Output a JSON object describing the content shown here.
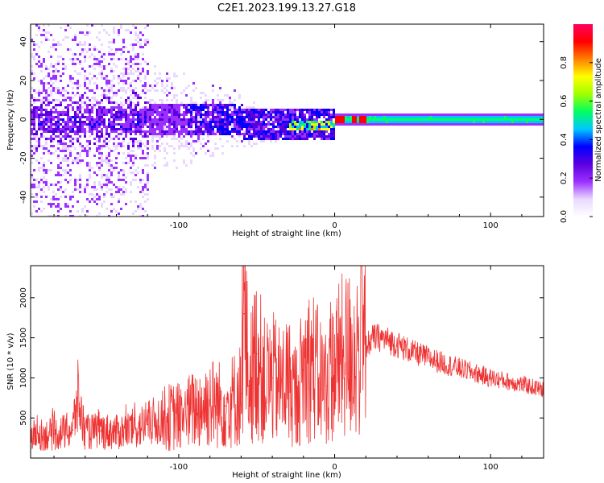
{
  "title": "C2E1.2023.199.13.27.G18",
  "chart_data": [
    {
      "type": "heatmap",
      "xlabel": "Height of straight line (km)",
      "ylabel": "Frequency (Hz)",
      "xlim": [
        -195,
        134
      ],
      "ylim": [
        -50,
        49
      ],
      "xticks": [
        -100,
        0,
        100
      ],
      "xtick_labels": [
        "-100",
        "0",
        "100"
      ],
      "yticks": [
        -40,
        -20,
        0,
        20,
        40
      ],
      "ytick_labels": [
        "-40",
        "-20",
        "0",
        "20",
        "40"
      ],
      "colorbar": {
        "label": "Normalized spectral amplitude",
        "range": [
          0.0,
          1.0
        ],
        "ticks": [
          0.0,
          0.2,
          0.4,
          0.6,
          0.8
        ],
        "tick_labels": [
          "0.0",
          "0.2",
          "0.4",
          "0.6",
          "0.8"
        ],
        "colormap": [
          "#ffffff",
          "#e8d8ff",
          "#9b30ff",
          "#5a00e0",
          "#0000ff",
          "#00c8ff",
          "#00ff60",
          "#a0ff00",
          "#ffff00",
          "#ff8000",
          "#ff0000",
          "#ff0060"
        ]
      },
      "grid": false
    },
    {
      "type": "line",
      "xlabel": "Height of straight line (km)",
      "ylabel": "SNR (10 * v/v)",
      "xlim": [
        -195,
        134
      ],
      "ylim": [
        0,
        2400
      ],
      "xticks": [
        -100,
        0,
        100
      ],
      "xtick_labels": [
        "-100",
        "0",
        "100"
      ],
      "yticks": [
        500,
        1000,
        1500,
        2000
      ],
      "ytick_labels": [
        "500",
        "1000",
        "1500",
        "2000"
      ],
      "series_color": "#ee3333",
      "x": [
        -195,
        -180,
        -168,
        -165,
        -160,
        -150,
        -140,
        -130,
        -120,
        -110,
        -100,
        -90,
        -80,
        -70,
        -60,
        -58,
        -55,
        -50,
        -45,
        -40,
        -35,
        -30,
        -25,
        -20,
        -15,
        -10,
        -5,
        0,
        5,
        10,
        15,
        20,
        25,
        30,
        40,
        50,
        60,
        70,
        80,
        90,
        100,
        110,
        120,
        134
      ],
      "values": [
        280,
        300,
        350,
        750,
        320,
        340,
        320,
        360,
        420,
        500,
        520,
        600,
        700,
        650,
        800,
        1800,
        900,
        1300,
        950,
        1000,
        900,
        1000,
        750,
        1100,
        1200,
        1000,
        900,
        1150,
        1250,
        1300,
        1350,
        1400,
        1500,
        1500,
        1420,
        1320,
        1250,
        1180,
        1120,
        1060,
        1000,
        960,
        920,
        850
      ],
      "grid": false
    }
  ]
}
